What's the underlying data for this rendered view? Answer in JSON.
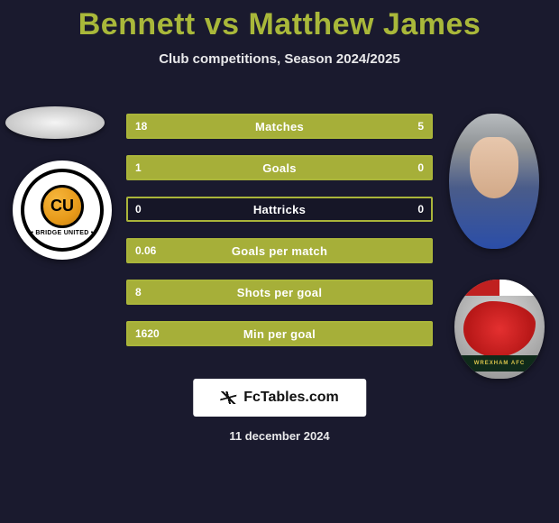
{
  "title": "Bennett vs Matthew James",
  "subtitle": "Club competitions, Season 2024/2025",
  "date": "11 december 2024",
  "brand": "FcTables.com",
  "colors": {
    "accent": "#a9b83a",
    "bar_fill": "#a6af39",
    "bar_border": "#aab53a",
    "background": "#1a1a2e",
    "text": "#ffffff"
  },
  "left": {
    "club_initials": "CU",
    "club_ribbon": "• BRIDGE UNITED •"
  },
  "right": {
    "club_band": "WREXHAM AFC"
  },
  "stats": [
    {
      "label": "Matches",
      "left_val": "18",
      "right_val": "5",
      "left_pct": 78,
      "right_pct": 22
    },
    {
      "label": "Goals",
      "left_val": "1",
      "right_val": "0",
      "left_pct": 100,
      "right_pct": 0
    },
    {
      "label": "Hattricks",
      "left_val": "0",
      "right_val": "0",
      "left_pct": 0,
      "right_pct": 0
    },
    {
      "label": "Goals per match",
      "left_val": "0.06",
      "right_val": "",
      "left_pct": 100,
      "right_pct": 0
    },
    {
      "label": "Shots per goal",
      "left_val": "8",
      "right_val": "",
      "left_pct": 100,
      "right_pct": 0
    },
    {
      "label": "Min per goal",
      "left_val": "1620",
      "right_val": "",
      "left_pct": 100,
      "right_pct": 0
    }
  ]
}
